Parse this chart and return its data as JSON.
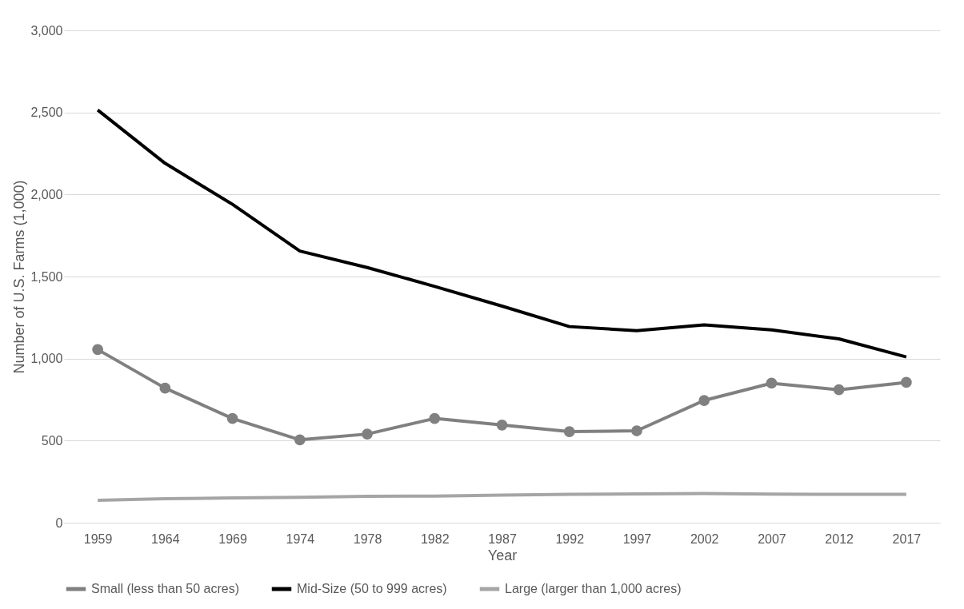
{
  "chart_data": {
    "type": "line",
    "xlabel": "Year",
    "ylabel": "Number of U.S. Farms (1,000)",
    "categories": [
      "1959",
      "1964",
      "1969",
      "1974",
      "1978",
      "1982",
      "1987",
      "1992",
      "1997",
      "2002",
      "2007",
      "2012",
      "2017"
    ],
    "series": [
      {
        "name": "Small (less than 50 acres)",
        "color": "#808080",
        "marker": "circle",
        "values": [
          1055,
          820,
          635,
          505,
          540,
          635,
          595,
          555,
          560,
          745,
          850,
          810,
          855
        ]
      },
      {
        "name": "Mid-Size (50 to 999 acres)",
        "color": "#000000",
        "marker": "none",
        "values": [
          2515,
          2190,
          1940,
          1655,
          1555,
          1440,
          1320,
          1195,
          1170,
          1205,
          1175,
          1120,
          1010
        ]
      },
      {
        "name": "Large (larger than 1,000 acres)",
        "color": "#a5a5a5",
        "marker": "none",
        "values": [
          136,
          146,
          151,
          155,
          161,
          162,
          168,
          173,
          175,
          178,
          174,
          173,
          173
        ]
      }
    ],
    "ylim": [
      0,
      3000
    ],
    "yticks": [
      0,
      500,
      {
        "value": 1000,
        "label": "1,000"
      },
      {
        "value": 1500,
        "label": "1,500"
      },
      {
        "value": 2000,
        "label": "2,000"
      },
      {
        "value": 2500,
        "label": "2,500"
      },
      {
        "value": 3000,
        "label": "3,000"
      }
    ],
    "grid": "y",
    "legend": "bottom",
    "line_style": "solid"
  }
}
